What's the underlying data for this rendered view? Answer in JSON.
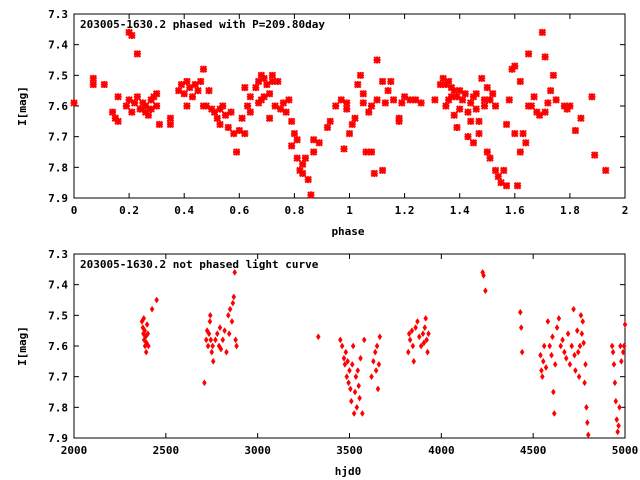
{
  "chart_data": [
    {
      "type": "scatter",
      "title": "203005-1630.2 phased with P=209.80day",
      "xlabel": "phase",
      "ylabel": "I[mag]",
      "xlim": [
        0,
        2
      ],
      "ylim": [
        7.9,
        7.3
      ],
      "y_inverted": true,
      "x_ticks": [
        "0",
        "0.2",
        "0.4",
        "0.6",
        "0.8",
        "1",
        "1.2",
        "1.4",
        "1.6",
        "1.8",
        "2"
      ],
      "y_ticks": [
        "7.3",
        "7.4",
        "7.5",
        "7.6",
        "7.7",
        "7.8",
        "7.9"
      ],
      "marker_color": "#ff0000",
      "marker": "star",
      "grid": false,
      "points": [
        [
          0.0,
          7.59
        ],
        [
          0.07,
          7.51
        ],
        [
          0.07,
          7.53
        ],
        [
          0.11,
          7.53
        ],
        [
          0.14,
          7.62
        ],
        [
          0.15,
          7.64
        ],
        [
          0.16,
          7.57
        ],
        [
          0.16,
          7.65
        ],
        [
          0.19,
          7.6
        ],
        [
          0.2,
          7.36
        ],
        [
          0.2,
          7.58
        ],
        [
          0.21,
          7.37
        ],
        [
          0.21,
          7.62
        ],
        [
          0.22,
          7.59
        ],
        [
          0.23,
          7.43
        ],
        [
          0.23,
          7.57
        ],
        [
          0.24,
          7.61
        ],
        [
          0.25,
          7.59
        ],
        [
          0.26,
          7.62
        ],
        [
          0.26,
          7.6
        ],
        [
          0.27,
          7.63
        ],
        [
          0.28,
          7.58
        ],
        [
          0.28,
          7.61
        ],
        [
          0.29,
          7.57
        ],
        [
          0.3,
          7.6
        ],
        [
          0.3,
          7.56
        ],
        [
          0.31,
          7.66
        ],
        [
          0.35,
          7.64
        ],
        [
          0.35,
          7.66
        ],
        [
          0.38,
          7.55
        ],
        [
          0.39,
          7.53
        ],
        [
          0.4,
          7.56
        ],
        [
          0.41,
          7.6
        ],
        [
          0.41,
          7.52
        ],
        [
          0.42,
          7.54
        ],
        [
          0.43,
          7.57
        ],
        [
          0.44,
          7.53
        ],
        [
          0.45,
          7.55
        ],
        [
          0.46,
          7.52
        ],
        [
          0.47,
          7.6
        ],
        [
          0.47,
          7.48
        ],
        [
          0.48,
          7.6
        ],
        [
          0.49,
          7.55
        ],
        [
          0.5,
          7.61
        ],
        [
          0.51,
          7.62
        ],
        [
          0.52,
          7.64
        ],
        [
          0.53,
          7.66
        ],
        [
          0.53,
          7.61
        ],
        [
          0.54,
          7.6
        ],
        [
          0.55,
          7.63
        ],
        [
          0.56,
          7.67
        ],
        [
          0.57,
          7.62
        ],
        [
          0.58,
          7.69
        ],
        [
          0.59,
          7.75
        ],
        [
          0.6,
          7.68
        ],
        [
          0.61,
          7.64
        ],
        [
          0.62,
          7.54
        ],
        [
          0.62,
          7.69
        ],
        [
          0.63,
          7.6
        ],
        [
          0.64,
          7.57
        ],
        [
          0.64,
          7.62
        ],
        [
          0.66,
          7.54
        ],
        [
          0.67,
          7.59
        ],
        [
          0.67,
          7.52
        ],
        [
          0.68,
          7.58
        ],
        [
          0.68,
          7.5
        ],
        [
          0.69,
          7.57
        ],
        [
          0.69,
          7.51
        ],
        [
          0.7,
          7.53
        ],
        [
          0.71,
          7.64
        ],
        [
          0.71,
          7.56
        ],
        [
          0.72,
          7.5
        ],
        [
          0.72,
          7.52
        ],
        [
          0.73,
          7.6
        ],
        [
          0.74,
          7.52
        ],
        [
          0.75,
          7.61
        ],
        [
          0.76,
          7.59
        ],
        [
          0.77,
          7.62
        ],
        [
          0.78,
          7.58
        ],
        [
          0.79,
          7.65
        ],
        [
          0.79,
          7.73
        ],
        [
          0.8,
          7.69
        ],
        [
          0.81,
          7.71
        ],
        [
          0.81,
          7.77
        ],
        [
          0.82,
          7.81
        ],
        [
          0.83,
          7.82
        ],
        [
          0.83,
          7.79
        ],
        [
          0.84,
          7.77
        ],
        [
          0.85,
          7.84
        ],
        [
          0.86,
          7.89
        ],
        [
          0.87,
          7.75
        ],
        [
          0.87,
          7.71
        ],
        [
          0.89,
          7.72
        ],
        [
          0.92,
          7.67
        ],
        [
          0.93,
          7.65
        ],
        [
          0.95,
          7.6
        ],
        [
          0.97,
          7.58
        ],
        [
          0.98,
          7.74
        ],
        [
          0.99,
          7.61
        ],
        [
          0.99,
          7.59
        ],
        [
          1.0,
          7.69
        ],
        [
          1.01,
          7.66
        ],
        [
          1.02,
          7.64
        ],
        [
          1.03,
          7.53
        ],
        [
          1.04,
          7.5
        ],
        [
          1.05,
          7.59
        ],
        [
          1.05,
          7.56
        ],
        [
          1.06,
          7.75
        ],
        [
          1.07,
          7.62
        ],
        [
          1.08,
          7.75
        ],
        [
          1.08,
          7.6
        ],
        [
          1.09,
          7.82
        ],
        [
          1.1,
          7.45
        ],
        [
          1.1,
          7.58
        ],
        [
          1.12,
          7.81
        ],
        [
          1.12,
          7.52
        ],
        [
          1.13,
          7.59
        ],
        [
          1.14,
          7.55
        ],
        [
          1.15,
          7.52
        ],
        [
          1.16,
          7.58
        ],
        [
          1.18,
          7.64
        ],
        [
          1.18,
          7.65
        ],
        [
          1.19,
          7.59
        ],
        [
          1.2,
          7.57
        ],
        [
          1.22,
          7.58
        ],
        [
          1.24,
          7.58
        ],
        [
          1.26,
          7.59
        ],
        [
          1.31,
          7.58
        ],
        [
          1.33,
          7.53
        ],
        [
          1.34,
          7.51
        ],
        [
          1.35,
          7.53
        ],
        [
          1.35,
          7.6
        ],
        [
          1.36,
          7.52
        ],
        [
          1.36,
          7.58
        ],
        [
          1.37,
          7.54
        ],
        [
          1.37,
          7.57
        ],
        [
          1.38,
          7.55
        ],
        [
          1.38,
          7.63
        ],
        [
          1.39,
          7.57
        ],
        [
          1.39,
          7.67
        ],
        [
          1.4,
          7.55
        ],
        [
          1.4,
          7.61
        ],
        [
          1.41,
          7.58
        ],
        [
          1.42,
          7.56
        ],
        [
          1.43,
          7.62
        ],
        [
          1.43,
          7.7
        ],
        [
          1.44,
          7.65
        ],
        [
          1.44,
          7.59
        ],
        [
          1.45,
          7.57
        ],
        [
          1.45,
          7.72
        ],
        [
          1.46,
          7.61
        ],
        [
          1.46,
          7.56
        ],
        [
          1.47,
          7.65
        ],
        [
          1.47,
          7.69
        ],
        [
          1.48,
          7.51
        ],
        [
          1.49,
          7.58
        ],
        [
          1.49,
          7.6
        ],
        [
          1.5,
          7.54
        ],
        [
          1.5,
          7.75
        ],
        [
          1.51,
          7.58
        ],
        [
          1.51,
          7.77
        ],
        [
          1.52,
          7.56
        ],
        [
          1.53,
          7.6
        ],
        [
          1.53,
          7.81
        ],
        [
          1.54,
          7.83
        ],
        [
          1.55,
          7.85
        ],
        [
          1.56,
          7.81
        ],
        [
          1.57,
          7.66
        ],
        [
          1.57,
          7.86
        ],
        [
          1.58,
          7.58
        ],
        [
          1.59,
          7.48
        ],
        [
          1.6,
          7.47
        ],
        [
          1.6,
          7.69
        ],
        [
          1.61,
          7.86
        ],
        [
          1.62,
          7.52
        ],
        [
          1.62,
          7.75
        ],
        [
          1.63,
          7.69
        ],
        [
          1.64,
          7.72
        ],
        [
          1.65,
          7.6
        ],
        [
          1.65,
          7.43
        ],
        [
          1.66,
          7.6
        ],
        [
          1.67,
          7.57
        ],
        [
          1.68,
          7.62
        ],
        [
          1.69,
          7.63
        ],
        [
          1.7,
          7.36
        ],
        [
          1.71,
          7.62
        ],
        [
          1.71,
          7.44
        ],
        [
          1.72,
          7.59
        ],
        [
          1.73,
          7.55
        ],
        [
          1.74,
          7.5
        ],
        [
          1.75,
          7.58
        ],
        [
          1.78,
          7.6
        ],
        [
          1.79,
          7.61
        ],
        [
          1.8,
          7.6
        ],
        [
          1.82,
          7.68
        ],
        [
          1.84,
          7.64
        ],
        [
          1.88,
          7.57
        ],
        [
          1.89,
          7.76
        ],
        [
          1.93,
          7.81
        ]
      ]
    },
    {
      "type": "scatter",
      "title": "203005-1630.2 not phased light curve",
      "xlabel": "hjd0",
      "ylabel": "I[mag]",
      "xlim": [
        2000,
        5000
      ],
      "ylim": [
        7.9,
        7.3
      ],
      "y_inverted": true,
      "x_ticks": [
        "2000",
        "2500",
        "3000",
        "3500",
        "4000",
        "4500",
        "5000"
      ],
      "y_ticks": [
        "7.3",
        "7.4",
        "7.5",
        "7.6",
        "7.7",
        "7.8",
        "7.9"
      ],
      "marker_color": "#ff0000",
      "marker": "diamond",
      "grid": false,
      "points": [
        [
          2370,
          7.52
        ],
        [
          2375,
          7.54
        ],
        [
          2378,
          7.56
        ],
        [
          2380,
          7.51
        ],
        [
          2382,
          7.58
        ],
        [
          2385,
          7.55
        ],
        [
          2387,
          7.6
        ],
        [
          2390,
          7.57
        ],
        [
          2393,
          7.62
        ],
        [
          2395,
          7.59
        ],
        [
          2398,
          7.53
        ],
        [
          2402,
          7.56
        ],
        [
          2405,
          7.6
        ],
        [
          2425,
          7.48
        ],
        [
          2450,
          7.45
        ],
        [
          2710,
          7.72
        ],
        [
          2720,
          7.58
        ],
        [
          2725,
          7.55
        ],
        [
          2730,
          7.6
        ],
        [
          2735,
          7.56
        ],
        [
          2740,
          7.52
        ],
        [
          2742,
          7.5
        ],
        [
          2745,
          7.58
        ],
        [
          2750,
          7.62
        ],
        [
          2755,
          7.6
        ],
        [
          2758,
          7.65
        ],
        [
          2770,
          7.58
        ],
        [
          2780,
          7.56
        ],
        [
          2790,
          7.6
        ],
        [
          2795,
          7.54
        ],
        [
          2800,
          7.61
        ],
        [
          2810,
          7.58
        ],
        [
          2820,
          7.55
        ],
        [
          2830,
          7.62
        ],
        [
          2840,
          7.5
        ],
        [
          2845,
          7.56
        ],
        [
          2850,
          7.48
        ],
        [
          2860,
          7.52
        ],
        [
          2865,
          7.46
        ],
        [
          2870,
          7.44
        ],
        [
          2875,
          7.36
        ],
        [
          2880,
          7.58
        ],
        [
          2885,
          7.6
        ],
        [
          3330,
          7.57
        ],
        [
          3450,
          7.58
        ],
        [
          3460,
          7.6
        ],
        [
          3470,
          7.64
        ],
        [
          3475,
          7.66
        ],
        [
          3480,
          7.62
        ],
        [
          3485,
          7.7
        ],
        [
          3490,
          7.65
        ],
        [
          3495,
          7.72
        ],
        [
          3500,
          7.68
        ],
        [
          3505,
          7.74
        ],
        [
          3510,
          7.78
        ],
        [
          3515,
          7.66
        ],
        [
          3520,
          7.6
        ],
        [
          3525,
          7.82
        ],
        [
          3530,
          7.75
        ],
        [
          3535,
          7.7
        ],
        [
          3540,
          7.8
        ],
        [
          3545,
          7.68
        ],
        [
          3550,
          7.73
        ],
        [
          3555,
          7.77
        ],
        [
          3560,
          7.64
        ],
        [
          3570,
          7.82
        ],
        [
          3580,
          7.58
        ],
        [
          3620,
          7.7
        ],
        [
          3630,
          7.65
        ],
        [
          3640,
          7.62
        ],
        [
          3645,
          7.68
        ],
        [
          3650,
          7.6
        ],
        [
          3655,
          7.74
        ],
        [
          3660,
          7.66
        ],
        [
          3665,
          7.57
        ],
        [
          3820,
          7.62
        ],
        [
          3825,
          7.56
        ],
        [
          3830,
          7.58
        ],
        [
          3840,
          7.55
        ],
        [
          3845,
          7.6
        ],
        [
          3850,
          7.65
        ],
        [
          3860,
          7.54
        ],
        [
          3870,
          7.52
        ],
        [
          3880,
          7.57
        ],
        [
          3890,
          7.6
        ],
        [
          3900,
          7.56
        ],
        [
          3905,
          7.59
        ],
        [
          3910,
          7.54
        ],
        [
          3915,
          7.51
        ],
        [
          3920,
          7.58
        ],
        [
          3925,
          7.62
        ],
        [
          3930,
          7.56
        ],
        [
          4225,
          7.36
        ],
        [
          4230,
          7.37
        ],
        [
          4240,
          7.42
        ],
        [
          4430,
          7.49
        ],
        [
          4435,
          7.54
        ],
        [
          4440,
          7.62
        ],
        [
          4540,
          7.63
        ],
        [
          4545,
          7.68
        ],
        [
          4550,
          7.7
        ],
        [
          4555,
          7.65
        ],
        [
          4560,
          7.6
        ],
        [
          4570,
          7.67
        ],
        [
          4580,
          7.52
        ],
        [
          4590,
          7.6
        ],
        [
          4600,
          7.63
        ],
        [
          4605,
          7.57
        ],
        [
          4610,
          7.75
        ],
        [
          4615,
          7.82
        ],
        [
          4620,
          7.66
        ],
        [
          4630,
          7.54
        ],
        [
          4640,
          7.51
        ],
        [
          4650,
          7.6
        ],
        [
          4660,
          7.58
        ],
        [
          4670,
          7.62
        ],
        [
          4680,
          7.64
        ],
        [
          4690,
          7.56
        ],
        [
          4700,
          7.66
        ],
        [
          4710,
          7.6
        ],
        [
          4720,
          7.48
        ],
        [
          4725,
          7.63
        ],
        [
          4730,
          7.68
        ],
        [
          4740,
          7.55
        ],
        [
          4745,
          7.62
        ],
        [
          4750,
          7.7
        ],
        [
          4755,
          7.6
        ],
        [
          4760,
          7.5
        ],
        [
          4765,
          7.56
        ],
        [
          4770,
          7.52
        ],
        [
          4775,
          7.59
        ],
        [
          4780,
          7.72
        ],
        [
          4785,
          7.66
        ],
        [
          4790,
          7.8
        ],
        [
          4795,
          7.85
        ],
        [
          4800,
          7.89
        ],
        [
          4930,
          7.6
        ],
        [
          4935,
          7.62
        ],
        [
          4940,
          7.66
        ],
        [
          4945,
          7.72
        ],
        [
          4950,
          7.78
        ],
        [
          4955,
          7.84
        ],
        [
          4960,
          7.88
        ],
        [
          4965,
          7.86
        ],
        [
          4970,
          7.8
        ],
        [
          4975,
          7.6
        ],
        [
          4980,
          7.65
        ],
        [
          4990,
          7.62
        ],
        [
          4995,
          7.6
        ],
        [
          5000,
          7.53
        ]
      ]
    }
  ]
}
